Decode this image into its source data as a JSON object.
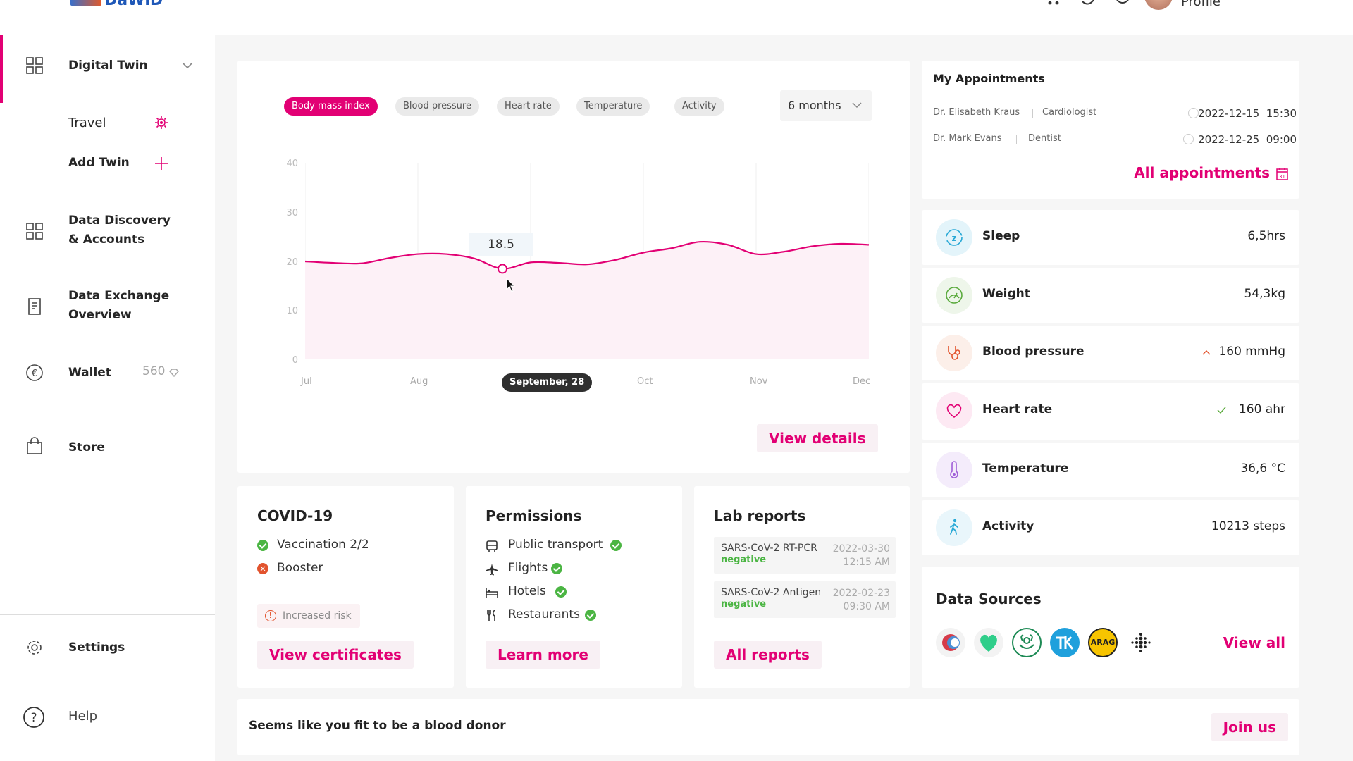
{
  "header": {
    "logo_text": "DaWiD",
    "profile_name": "Profile"
  },
  "sidebar": {
    "digital_twin": "Digital Twin",
    "travel": "Travel",
    "add_twin": "Add Twin",
    "data_discovery_line1": "Data Discovery",
    "data_discovery_line2": "& Accounts",
    "data_exchange_line1": "Data Exchange",
    "data_exchange_line2": "Overview",
    "wallet": "Wallet",
    "wallet_value": "560",
    "store": "Store",
    "settings": "Settings",
    "help": "Help"
  },
  "chart_card": {
    "tabs": [
      "Body mass index",
      "Blood pressure",
      "Heart rate",
      "Temperature",
      "Activity"
    ],
    "active_tab": 0,
    "range_label": "6 months",
    "tooltip_value": "18.5",
    "selected_date": "September, 28",
    "view_details": "View details"
  },
  "chart_data": {
    "type": "line",
    "x_ticks": [
      "Jul",
      "Aug",
      "September, 28",
      "Oct",
      "Nov",
      "Dec"
    ],
    "y_ticks": [
      "40",
      "30",
      "20",
      "10",
      "0"
    ],
    "ylim": [
      0,
      40
    ],
    "series": [
      {
        "color": "#e20074",
        "x": [
          0,
          0.5,
          1,
          1.5,
          2,
          2.5,
          3,
          3.5,
          4,
          4.5,
          5,
          5.5,
          6,
          6.5,
          7,
          7.5,
          8,
          8.5,
          9,
          9.5,
          10
        ],
        "values": [
          20,
          19.7,
          19.6,
          20.7,
          21.5,
          21.5,
          20.6,
          18.5,
          19.8,
          19.7,
          19.4,
          20.3,
          21.8,
          22.7,
          24,
          23.4,
          21.5,
          22.0,
          23.1,
          23.6,
          23.4
        ]
      }
    ],
    "highlight": {
      "x": 3.5,
      "value": 18.5
    },
    "grid": true
  },
  "covid": {
    "title": "COVID-19",
    "vaccination": "Vaccination 2/2",
    "booster": "Booster",
    "risk": "Increased risk",
    "button": "View certificates"
  },
  "permissions": {
    "title": "Permissions",
    "items": [
      "Public transport",
      "Flights",
      "Hotels",
      "Restaurants"
    ],
    "button": "Learn more"
  },
  "lab_reports": {
    "title": "Lab reports",
    "items": [
      {
        "name": "SARS-CoV-2 RT-PCR",
        "result": "negative",
        "date": "2022-03-30",
        "time": "12:15 AM"
      },
      {
        "name": "SARS-CoV-2 Antigen",
        "result": "negative",
        "date": "2022-02-23",
        "time": "09:30 AM"
      }
    ],
    "button": "All reports"
  },
  "appointments": {
    "title": "My Appointments",
    "items": [
      {
        "doctor": "Dr. Elisabeth Kraus",
        "specialty": "Cardiologist",
        "date": "2022-12-15",
        "time": "15:30"
      },
      {
        "doctor": "Dr. Mark Evans",
        "specialty": "Dentist",
        "date": "2022-12-25",
        "time": "09:00"
      }
    ],
    "link": "All appointments"
  },
  "metrics": [
    {
      "label": "Sleep",
      "value": "6,5hrs",
      "icon": "sleep-icon",
      "color": "#29a9d6",
      "bg": "#e3f4fa"
    },
    {
      "label": "Weight",
      "value": "54,3kg",
      "icon": "weight-icon",
      "color": "#5aaa3c",
      "bg": "#eef6ea"
    },
    {
      "label": "Blood pressure",
      "value": "160 mmHg",
      "icon": "stethoscope-icon",
      "color": "#e2532d",
      "bg": "#fcefe9"
    },
    {
      "label": "Heart rate",
      "value": "160 ahr",
      "icon": "heart-icon",
      "color": "#e20074",
      "bg": "#fde9f3"
    },
    {
      "label": "Temperature",
      "value": "36,6 °C",
      "icon": "thermometer-icon",
      "color": "#a05ed8",
      "bg": "#f4ecfb"
    },
    {
      "label": "Activity",
      "value": "10213 steps",
      "icon": "walking-icon",
      "color": "#29a9d6",
      "bg": "#e9f6fb"
    }
  ],
  "data_sources": {
    "title": "Data Sources",
    "link": "View all",
    "arag_text": "ARAG"
  },
  "donor": {
    "text": "Seems like you fit to be a blood donor",
    "button": "Join us"
  }
}
